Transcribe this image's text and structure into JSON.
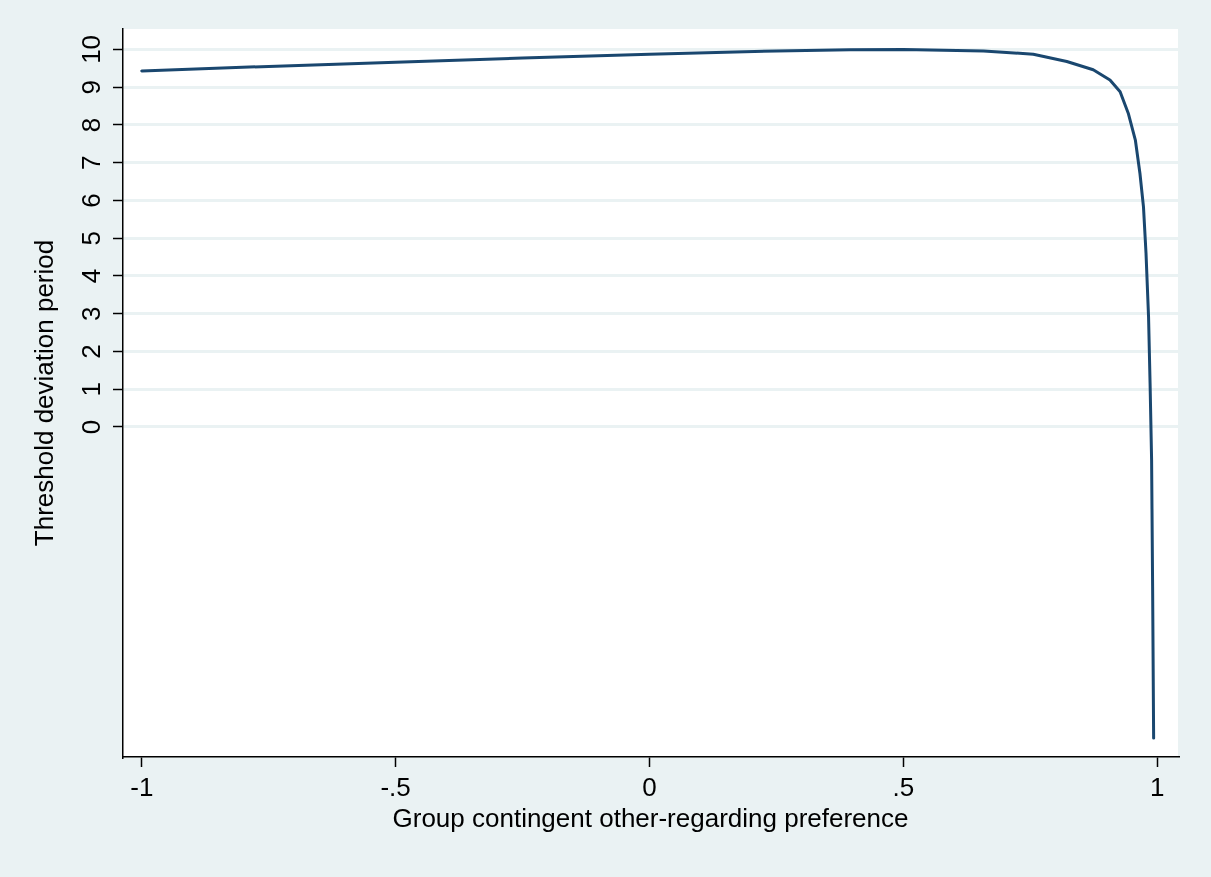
{
  "chart_data": {
    "type": "line",
    "xlabel": "Group contingent other-regarding preference",
    "ylabel": "Threshold deviation period",
    "x": [
      -1,
      -0.75,
      -0.5,
      -0.25,
      0,
      0.25,
      0.395,
      0.5,
      0.658,
      0.756,
      0.822,
      0.874,
      0.907,
      0.927,
      0.943,
      0.957,
      0.966,
      0.973,
      0.978,
      0.983,
      0.986,
      0.989,
      0.991,
      0.993
    ],
    "series": [
      {
        "color": "#1a476f",
        "values": [
          9.43,
          9.55,
          9.66,
          9.77,
          9.87,
          9.96,
          9.99,
          10.0,
          9.96,
          9.87,
          9.68,
          9.46,
          9.19,
          8.88,
          8.31,
          7.6,
          6.72,
          5.83,
          4.6,
          2.92,
          1.16,
          -0.87,
          -4.23,
          -8.24
        ]
      }
    ],
    "xlim": [
      -1.037,
      1.041
    ],
    "xticks": [
      {
        "value": -1,
        "label": "-1"
      },
      {
        "value": -0.5,
        "label": "-.5"
      },
      0,
      {
        "value": 0.5,
        "label": ".5"
      },
      1
    ],
    "ylim": [
      -8.74,
      10.54
    ],
    "yticks": [
      0,
      1,
      2,
      3,
      4,
      5,
      6,
      7,
      8,
      9,
      10
    ],
    "grid": "y",
    "legend": false,
    "marker": "none",
    "line_style": "solid"
  }
}
